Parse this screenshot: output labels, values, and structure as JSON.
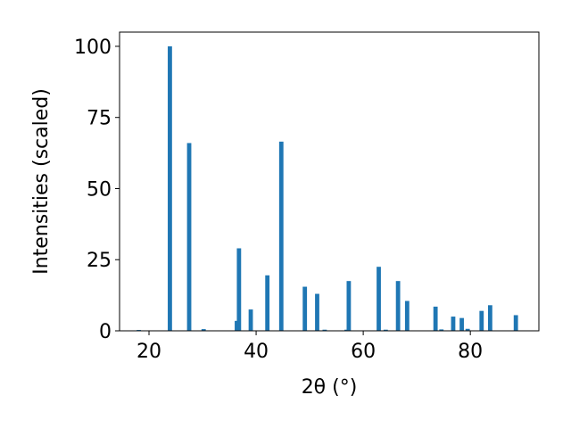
{
  "chart_data": {
    "type": "bar",
    "title": "",
    "xlabel": "2θ (°)",
    "ylabel": "Intensities (scaled)",
    "xlim": [
      14.5,
      92.8
    ],
    "ylim": [
      0,
      105
    ],
    "xticks": [
      20,
      40,
      60,
      80
    ],
    "yticks": [
      0,
      25,
      50,
      75,
      100
    ],
    "grid": false,
    "legend": "none",
    "bar_color": "#1f77b4",
    "bar_width": 0.8,
    "x": [
      18.1,
      23.9,
      27.5,
      30.2,
      36.4,
      36.8,
      39.0,
      42.1,
      44.7,
      49.1,
      51.4,
      52.8,
      56.9,
      57.3,
      62.9,
      64.2,
      66.5,
      68.2,
      73.5,
      74.6,
      76.8,
      78.4,
      79.5,
      82.1,
      83.7,
      88.5
    ],
    "y": [
      0.3,
      100,
      66,
      0.6,
      3.5,
      29,
      7.5,
      19.5,
      66.5,
      15.5,
      13,
      0.4,
      0.4,
      17.5,
      22.5,
      0.4,
      17.5,
      10.5,
      8.5,
      0.5,
      5,
      4.5,
      0.7,
      7,
      9,
      5.5
    ]
  }
}
